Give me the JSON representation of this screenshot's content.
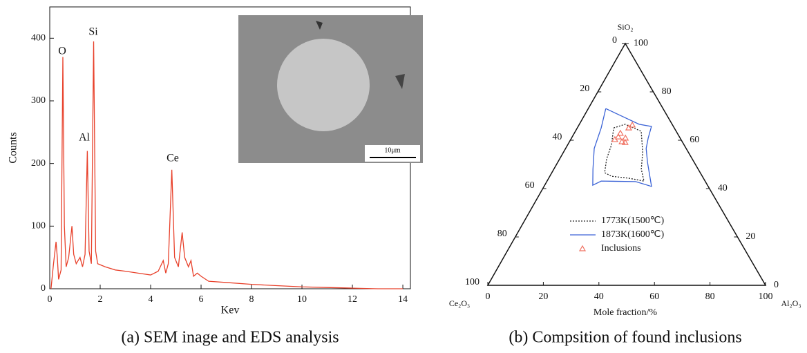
{
  "chart_data": [
    {
      "type": "line",
      "y_label": "Counts",
      "x_label": "Kev",
      "xlim": [
        0,
        14.3
      ],
      "ylim": [
        0,
        450
      ],
      "xticks": [
        0,
        2,
        4,
        6,
        8,
        10,
        12,
        14
      ],
      "yticks": [
        0,
        100,
        200,
        300,
        400
      ],
      "x": [
        0.05,
        0.15,
        0.25,
        0.3,
        0.35,
        0.45,
        0.52,
        0.58,
        0.65,
        0.75,
        0.88,
        0.95,
        1.05,
        1.2,
        1.3,
        1.4,
        1.49,
        1.56,
        1.65,
        1.74,
        1.82,
        1.9,
        2.2,
        2.6,
        3.0,
        3.5,
        4.0,
        4.3,
        4.5,
        4.6,
        4.7,
        4.84,
        4.95,
        5.1,
        5.25,
        5.35,
        5.5,
        5.6,
        5.7,
        5.85,
        6.0,
        6.3,
        7,
        8,
        9,
        10,
        11,
        12,
        13,
        14
      ],
      "series": [
        {
          "color": "#e8402a",
          "values": [
            0,
            40,
            75,
            50,
            15,
            30,
            370,
            100,
            35,
            50,
            100,
            55,
            40,
            50,
            35,
            55,
            220,
            60,
            40,
            395,
            60,
            40,
            35,
            30,
            28,
            25,
            22,
            28,
            45,
            25,
            40,
            190,
            50,
            35,
            90,
            50,
            35,
            45,
            20,
            25,
            20,
            12,
            10,
            7,
            5,
            3,
            2,
            1,
            0,
            0
          ]
        }
      ],
      "annotations": [
        "O",
        "Si",
        "Al",
        "Ce"
      ],
      "inset_scale_label": "10μm",
      "caption": "(a) SEM inage and EDS analysis"
    },
    {
      "type": "ternary",
      "top_label": "SiO₂",
      "left_label": "Ce₂O₃",
      "right_label": "Al₂O₃",
      "x_label": "Mole fraction/%",
      "bottom_ticks": [
        0,
        20,
        40,
        60,
        80,
        100
      ],
      "left_ticks": [
        0,
        20,
        40,
        60,
        80,
        100
      ],
      "right_ticks": [
        0,
        20,
        40,
        60,
        80,
        100
      ],
      "series": [
        {
          "name": "1773K(1500℃)",
          "color": "#222222",
          "style": "dotted",
          "al2o3": [
            13.1,
            16.5,
            23.7,
            28.5,
            31.5,
            34.9,
            28.8,
            22.2,
            19.0,
            16.9,
            15.8,
            13.1
          ],
          "sio2": [
            65.1,
            66.6,
            63.7,
            55.1,
            48.0,
            43.1,
            44.3,
            45.1,
            46.6,
            52.3,
            58.0,
            65.1
          ]
        },
        {
          "name": "1873K(1600℃)",
          "color": "#3a62d6",
          "style": "solid",
          "al2o3": [
            6.3,
            11.4,
            21.5,
            26.4,
            27.6,
            29.0,
            32.3,
            38.7,
            32.0,
            19.5,
            17.3,
            14.1,
            10.3,
            8.6,
            6.3
          ],
          "sio2": [
            73.1,
            70.9,
            66.6,
            65.7,
            60.9,
            56.6,
            50.9,
            40.9,
            42.9,
            43.1,
            41.4,
            48.0,
            56.6,
            65.1,
            73.1
          ]
        },
        {
          "name": "Inclusions",
          "color": "#f07060",
          "style": "triangle",
          "al2o3": [
            16.6,
            15.9,
            18.9,
            19.4,
            16.6,
            18.5,
            19.2,
            20.2
          ],
          "sio2": [
            61.4,
            60.3,
            59.4,
            60.9,
            62.9,
            65.1,
            66.3,
            59.1
          ]
        }
      ],
      "caption": "(b) Compsition of found inclusions"
    }
  ]
}
